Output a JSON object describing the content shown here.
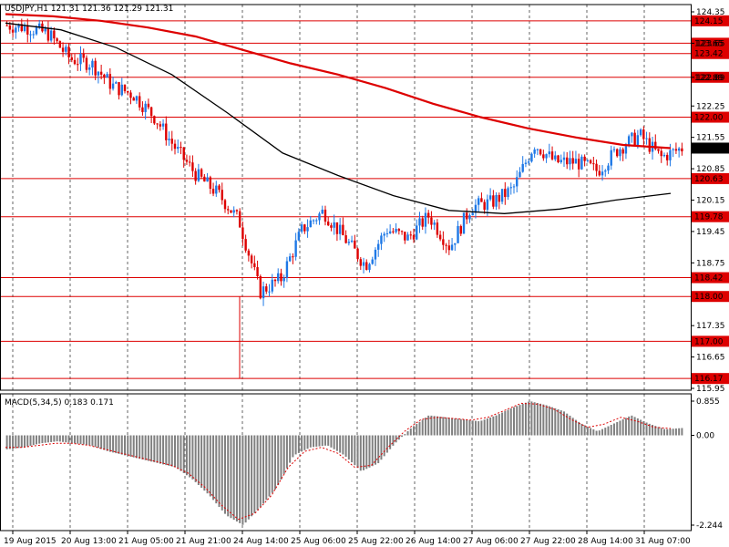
{
  "colors": {
    "background": "#ffffff",
    "grid": "#000000",
    "level_line": "#dd0000",
    "level_label_bg": "#dd0000",
    "level_label_text": "#ffffff",
    "bull_candle": "#1e78e6",
    "bear_candle": "#dd0000",
    "ma_fast": "#dd0000",
    "ma_slow": "#000000",
    "macd_hist": "#808080",
    "macd_signal": "#dd0000",
    "current_price_bg": "#000000",
    "current_price_text": "#ffffff"
  },
  "main_title": "USDJPY,H1  121.31 121.36 121.29 121.31",
  "macd_title": "MACD(5,34,5) 0.183 0.171",
  "price_axis_labels": [
    "124.35",
    "123.65",
    "122.89",
    "122.25",
    "121.55",
    "120.85",
    "120.15",
    "119.45",
    "118.75",
    "117.35",
    "116.65",
    "115.95"
  ],
  "levels": [
    "124.15",
    "123.65",
    "123.42",
    "122.89",
    "122.00",
    "120.63",
    "119.78",
    "118.42",
    "118.00",
    "117.00",
    "116.17"
  ],
  "current_price": "121.31",
  "macd_axis_labels": [
    "0.855",
    "0.00",
    "-2.244"
  ],
  "time_labels": [
    "19 Aug 2015",
    "20 Aug 13:00",
    "21 Aug 05:00",
    "21 Aug 21:00",
    "24 Aug 14:00",
    "25 Aug 06:00",
    "25 Aug 22:00",
    "26 Aug 14:00",
    "27 Aug 06:00",
    "27 Aug 22:00",
    "28 Aug 14:00",
    "31 Aug 07:00"
  ],
  "chart_data": {
    "type": "candlestick",
    "symbol": "USDJPY",
    "timeframe": "H1",
    "price_range": [
      115.95,
      124.35
    ],
    "levels": [
      124.15,
      123.65,
      123.42,
      122.89,
      122.0,
      120.63,
      119.78,
      118.42,
      118.0,
      117.0,
      116.17
    ],
    "close_path": [
      124.05,
      124.0,
      123.85,
      123.3,
      123.2,
      122.7,
      122.5,
      122.0,
      121.3,
      120.7,
      120.3,
      119.7,
      118.1,
      118.4,
      119.5,
      119.9,
      119.3,
      118.7,
      119.5,
      119.3,
      119.8,
      119.1,
      120.0,
      120.1,
      120.4,
      121.4,
      121.0,
      121.0,
      120.8,
      121.3,
      121.6,
      121.1,
      121.31
    ],
    "ma_fast": [
      124.3,
      124.25,
      124.15,
      124.0,
      123.8,
      123.5,
      123.2,
      122.95,
      122.65,
      122.3,
      122.0,
      121.75,
      121.55,
      121.38,
      121.31
    ],
    "ma_slow": [
      124.1,
      123.95,
      123.55,
      122.95,
      122.1,
      121.2,
      120.7,
      120.25,
      119.92,
      119.85,
      119.95,
      120.15,
      120.3
    ],
    "macd": {
      "params": "5,34,5",
      "range": [
        -2.244,
        0.855
      ],
      "value": 0.183,
      "signal": 0.171,
      "hist": [
        -0.35,
        -0.3,
        -0.2,
        -0.15,
        -0.2,
        -0.25,
        -0.4,
        -0.5,
        -0.6,
        -0.7,
        -0.8,
        -1.1,
        -1.5,
        -2.0,
        -2.244,
        -1.8,
        -1.3,
        -0.5,
        -0.3,
        -0.25,
        -0.5,
        -0.9,
        -0.7,
        -0.2,
        0.2,
        0.5,
        0.45,
        0.4,
        0.35,
        0.5,
        0.7,
        0.855,
        0.75,
        0.6,
        0.3,
        0.1,
        0.3,
        0.5,
        0.3,
        0.15,
        0.183
      ],
      "signal_line": [
        -0.3,
        -0.3,
        -0.25,
        -0.2,
        -0.2,
        -0.25,
        -0.35,
        -0.45,
        -0.55,
        -0.65,
        -0.75,
        -0.95,
        -1.3,
        -1.75,
        -2.1,
        -1.95,
        -1.5,
        -0.8,
        -0.4,
        -0.3,
        -0.45,
        -0.8,
        -0.75,
        -0.3,
        0.1,
        0.4,
        0.45,
        0.42,
        0.38,
        0.45,
        0.62,
        0.8,
        0.78,
        0.65,
        0.4,
        0.2,
        0.28,
        0.45,
        0.35,
        0.2,
        0.171
      ]
    }
  }
}
